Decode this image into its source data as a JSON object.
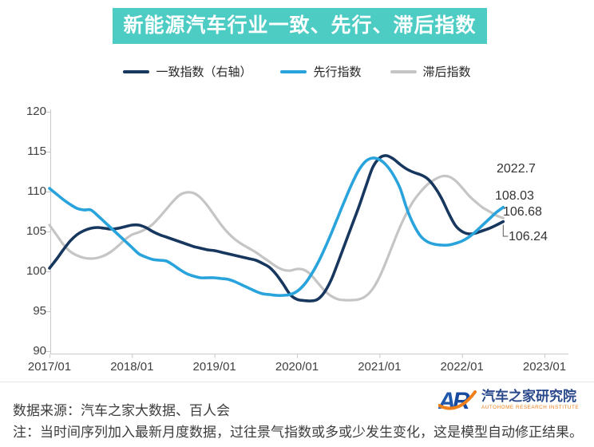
{
  "banner": {
    "title": "新能源汽车行业一致、先行、滞后指数",
    "bg_color": "#4DCCC4",
    "text_color": "#FFFFFF"
  },
  "legend": {
    "items": [
      {
        "label": "一致指数（右轴）",
        "color": "#17375E"
      },
      {
        "label": "先行指数",
        "color": "#29A3DC"
      },
      {
        "label": "滞后指数",
        "color": "#C5C5C5"
      }
    ]
  },
  "chart_data": {
    "type": "line",
    "title": "新能源汽车行业一致、先行、滞后指数",
    "x_interval": "monthly",
    "x_start": "2017/01",
    "x_end": "2022/07",
    "x_tick_labels": [
      "2017/01",
      "2018/01",
      "2019/01",
      "2020/01",
      "2021/01",
      "2022/01",
      "2023/01"
    ],
    "y_ticks": [
      90,
      95,
      100,
      105,
      110,
      115,
      120
    ],
    "ylim": [
      90,
      120
    ],
    "grid": false,
    "legend_position": "top",
    "series": [
      {
        "name": "一致指数（右轴）",
        "color": "#17375E",
        "final_label": "106.24",
        "values": [
          100.4,
          101.5,
          102.7,
          103.8,
          104.6,
          105.1,
          105.4,
          105.5,
          105.4,
          105.3,
          105.4,
          105.6,
          105.8,
          105.8,
          105.5,
          105.0,
          104.6,
          104.3,
          104.0,
          103.7,
          103.4,
          103.1,
          102.9,
          102.7,
          102.6,
          102.4,
          102.2,
          102.0,
          101.8,
          101.6,
          101.4,
          101.0,
          100.5,
          99.6,
          98.4,
          97.1,
          96.5,
          96.35,
          96.3,
          96.5,
          97.4,
          99.0,
          101.2,
          103.5,
          105.8,
          108.1,
          110.6,
          113.0,
          114.2,
          114.5,
          114.1,
          113.4,
          112.8,
          112.4,
          112.1,
          111.6,
          110.6,
          109.2,
          107.4,
          105.8,
          105.0,
          104.7,
          104.8,
          105.1,
          105.4,
          105.8,
          106.24
        ]
      },
      {
        "name": "先行指数",
        "color": "#29A3DC",
        "final_label": "108.03",
        "values": [
          110.4,
          109.7,
          109.0,
          108.4,
          107.9,
          107.7,
          107.7,
          107.0,
          106.2,
          105.4,
          104.6,
          103.8,
          103.0,
          102.2,
          101.8,
          101.5,
          101.4,
          101.3,
          100.8,
          100.2,
          99.7,
          99.4,
          99.2,
          99.2,
          99.2,
          99.1,
          99.0,
          98.7,
          98.3,
          97.9,
          97.5,
          97.2,
          97.1,
          97.0,
          97.0,
          97.1,
          97.5,
          98.3,
          99.5,
          101.0,
          102.8,
          104.8,
          106.9,
          109.0,
          111.0,
          112.7,
          113.8,
          114.2,
          114.0,
          113.3,
          112.1,
          110.4,
          107.8,
          105.8,
          104.4,
          103.7,
          103.4,
          103.3,
          103.3,
          103.5,
          103.8,
          104.3,
          105.0,
          105.8,
          106.6,
          107.4,
          108.03
        ]
      },
      {
        "name": "滞后指数",
        "color": "#C5C5C5",
        "final_label": "106.68",
        "values": [
          105.8,
          104.6,
          103.4,
          102.5,
          102.0,
          101.7,
          101.6,
          101.7,
          102.0,
          102.5,
          103.2,
          104.0,
          104.6,
          104.9,
          105.3,
          105.9,
          106.8,
          107.8,
          108.8,
          109.6,
          109.9,
          109.8,
          109.2,
          108.2,
          107.0,
          105.8,
          104.8,
          104.0,
          103.4,
          102.9,
          102.4,
          101.8,
          101.2,
          100.6,
          100.2,
          100.1,
          100.3,
          100.2,
          99.6,
          98.6,
          97.6,
          96.9,
          96.5,
          96.4,
          96.4,
          96.5,
          96.9,
          97.8,
          99.3,
          101.3,
          103.5,
          105.6,
          107.4,
          108.9,
          110.0,
          110.9,
          111.5,
          111.9,
          111.9,
          111.4,
          110.5,
          109.5,
          108.7,
          108.0,
          107.5,
          107.0,
          106.68
        ]
      }
    ],
    "annotations": [
      {
        "text": "2022.7"
      },
      {
        "text": "108.03"
      },
      {
        "text": "106.68"
      },
      {
        "text": "106.24"
      }
    ],
    "axis_color": "#C8C8C8"
  },
  "footer": {
    "source": "数据来源：汽车之家大数据、百人会",
    "note": "注：当时间序列加入最新月度数据，过往景气指数或多或少发生变化，这是模型自动修正结果。"
  },
  "logo": {
    "mark_a": "A",
    "mark_r": "R",
    "cn": "汽车之家研究院",
    "en": "AUTOHOME RESEARCH INSTITUTE",
    "blue_a": "#1E57AC",
    "blue_r": "#164A9E",
    "orange": "#EE7F1B",
    "cn_color": "#2B4A8C"
  }
}
